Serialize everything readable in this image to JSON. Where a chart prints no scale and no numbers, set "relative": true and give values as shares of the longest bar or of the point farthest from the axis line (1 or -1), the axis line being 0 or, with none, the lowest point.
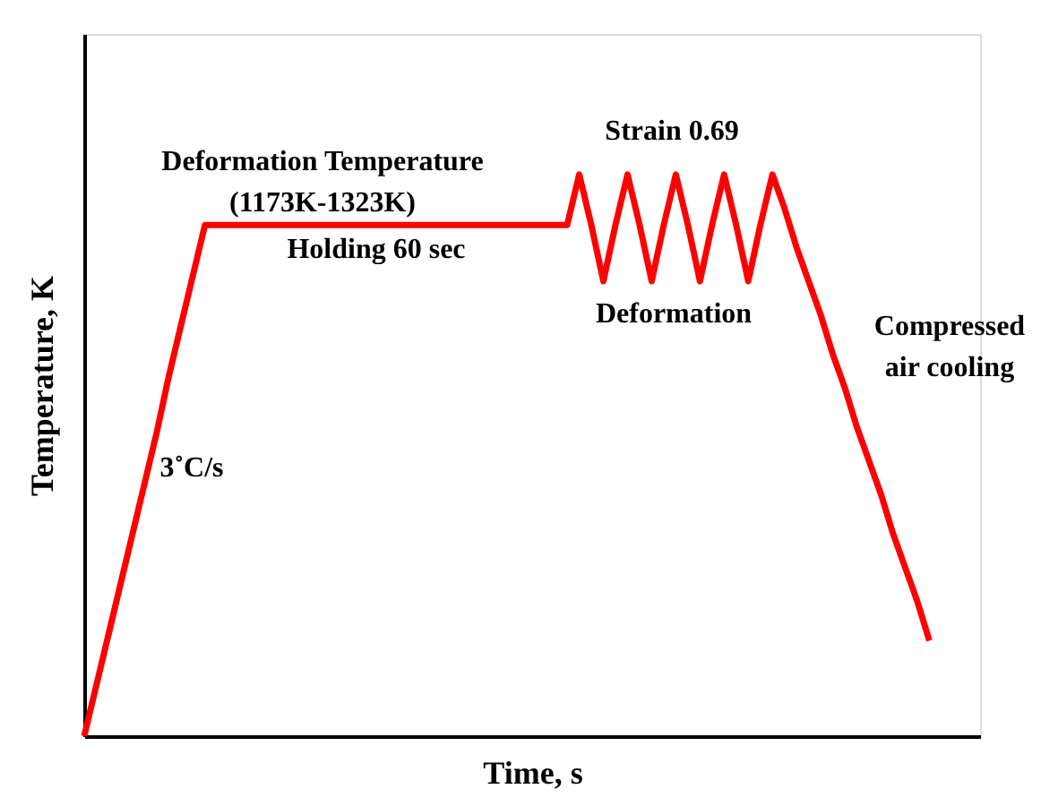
{
  "chart_data": {
    "type": "line",
    "relative": true,
    "xlabel": "Time, s",
    "ylabel": "Temperature, K",
    "categories": [
      null,
      null,
      null,
      null,
      null,
      null,
      null,
      null,
      null,
      null,
      null,
      null,
      null,
      null,
      null,
      null,
      null,
      null,
      null,
      null,
      null,
      null,
      null,
      null,
      null,
      null,
      null,
      null,
      null,
      null,
      null,
      null,
      null,
      null,
      null,
      null,
      null,
      null,
      null,
      null,
      null,
      null,
      null,
      null,
      null,
      null,
      null,
      null,
      null,
      null,
      null,
      null,
      null,
      null,
      null,
      null,
      null,
      null,
      null,
      null,
      null,
      null,
      null,
      null,
      null,
      null,
      null,
      null,
      null,
      null,
      null
    ],
    "series": [
      {
        "color": "#ff0000",
        "values": [
          0,
          0.09,
          0.18,
          0.27,
          0.36,
          0.45,
          0.54,
          0.64,
          0.73,
          0.82,
          0.91,
          0.91,
          0.91,
          0.91,
          0.91,
          0.91,
          0.91,
          0.91,
          0.91,
          0.91,
          0.91,
          0.91,
          0.91,
          0.91,
          0.91,
          0.91,
          0.91,
          0.91,
          0.91,
          0.91,
          0.91,
          0.91,
          0.91,
          0.91,
          0.91,
          0.91,
          0.91,
          0.91,
          0.91,
          0.91,
          0.91,
          1,
          0.91,
          0.81,
          0.91,
          1,
          0.91,
          0.81,
          0.91,
          1,
          0.91,
          0.81,
          0.91,
          1,
          0.91,
          0.81,
          0.91,
          1,
          0.94,
          0.87,
          0.81,
          0.75,
          0.68,
          0.62,
          0.55,
          0.49,
          0.43,
          0.36,
          0.3,
          0.24,
          0.17
        ]
      }
    ],
    "annotations": [
      "Deformation Temperature\n(1173K-1323K)",
      "Holding 60 sec",
      "Strain 0.69",
      "Deformation",
      "Compressed\nair cooling",
      "3˚C/s"
    ],
    "marker": "none",
    "line_style": "solid",
    "grid": false
  }
}
